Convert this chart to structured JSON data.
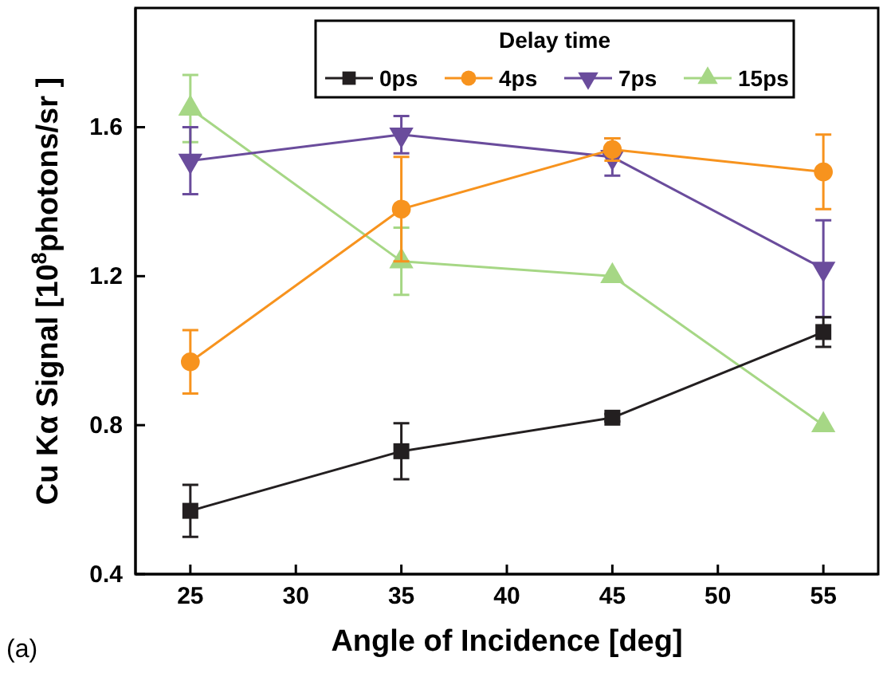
{
  "chart_data": {
    "type": "line",
    "xlabel": "Angle of Incidence [deg]",
    "ylabel": "Cu Kα Signal [10$^{8}$photons/sr ]",
    "legend_title": "Delay time",
    "legend": "top",
    "annotations": [
      "(a)"
    ],
    "x": [
      25,
      35,
      45,
      55
    ],
    "xlim": [
      22.4,
      57.6
    ],
    "xticks": [
      25,
      30,
      35,
      40,
      45,
      50,
      55
    ],
    "ylim": [
      0.4,
      1.92
    ],
    "yticks": [
      {
        "value": 0.4,
        "label": "0.4"
      },
      {
        "value": 0.8,
        "label": "0.8"
      },
      {
        "value": 1.2,
        "label": "1.2"
      },
      {
        "value": 1.6,
        "label": "1.6"
      }
    ],
    "series": [
      {
        "name": "0ps",
        "color": "#231f20",
        "marker": "square",
        "values": [
          0.57,
          0.73,
          0.82,
          1.05
        ],
        "errors": [
          0.07,
          0.075,
          0.01,
          0.04
        ]
      },
      {
        "name": "4ps",
        "color": "#f7931e",
        "marker": "circle",
        "values": [
          0.97,
          1.38,
          1.54,
          1.48
        ],
        "errors": [
          0.085,
          0.14,
          0.03,
          0.1
        ]
      },
      {
        "name": "7ps",
        "color": "#6a4c9c",
        "marker": "triangle-down",
        "values": [
          1.51,
          1.58,
          1.52,
          1.22
        ],
        "errors": [
          0.09,
          0.05,
          0.05,
          0.13
        ]
      },
      {
        "name": "15ps",
        "color": "#a6d785",
        "marker": "triangle",
        "values": [
          1.65,
          1.24,
          1.2,
          0.8
        ],
        "errors": [
          0.09,
          0.09,
          null,
          null
        ]
      }
    ]
  }
}
